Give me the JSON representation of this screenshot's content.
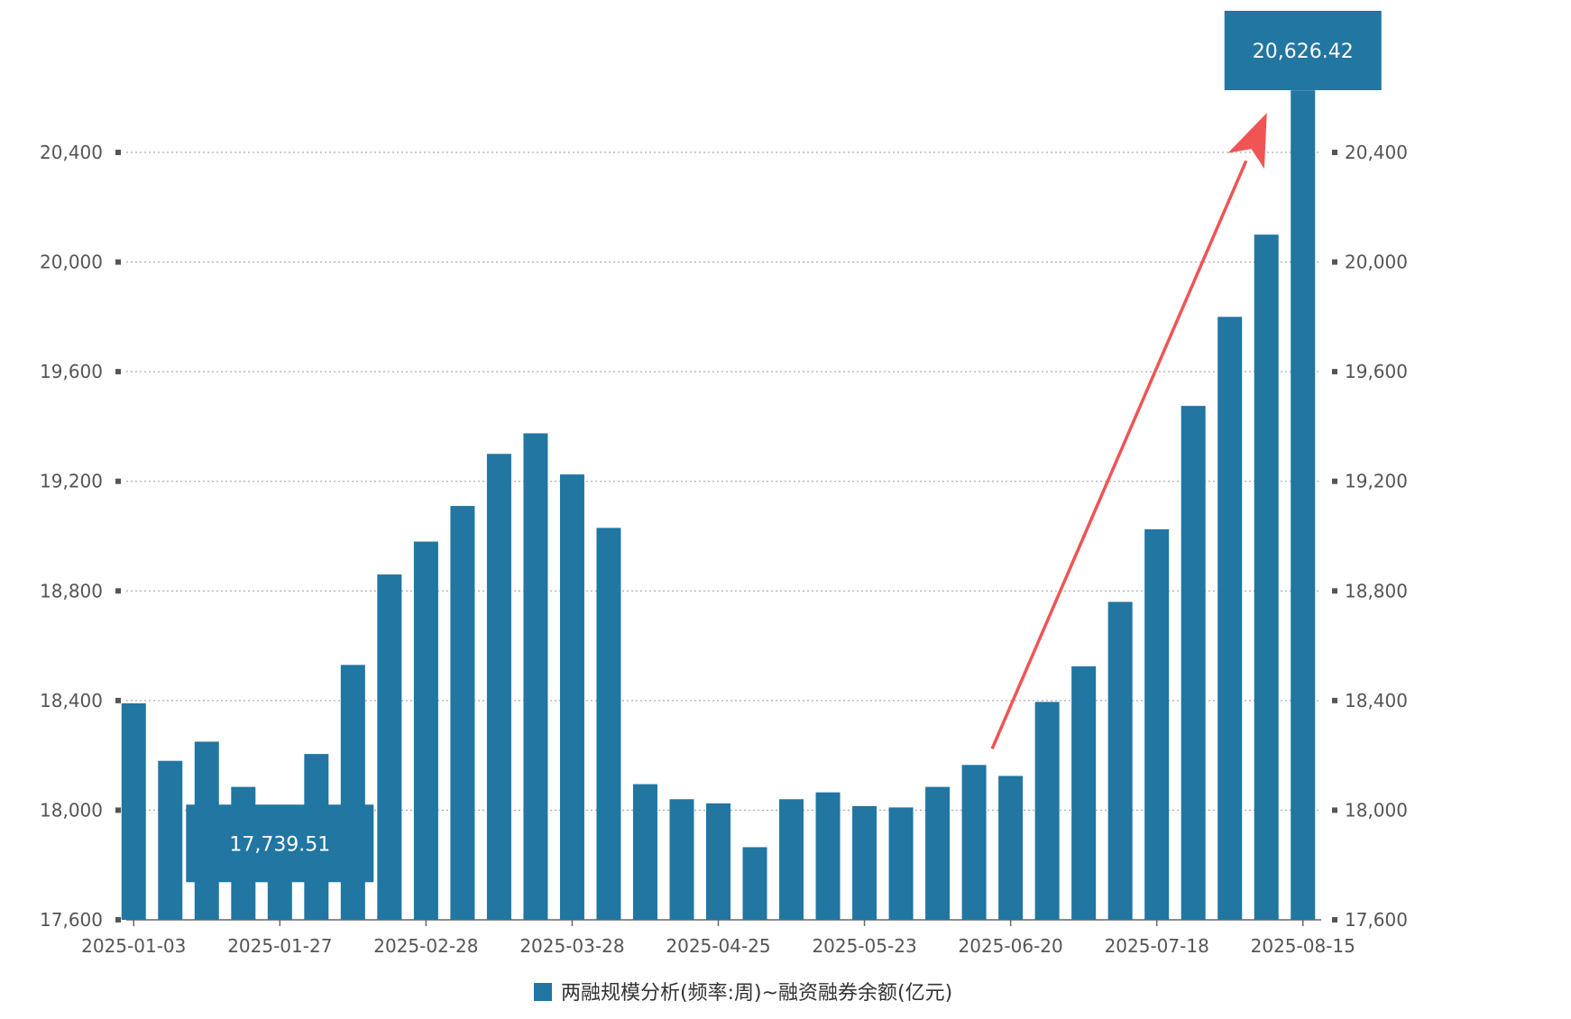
{
  "colors": {
    "bar": "#2176a2",
    "arrow": "#f05454",
    "grid": "#9a9a9a",
    "axis": "#555555",
    "callout": "#2176a2"
  },
  "chart_data": {
    "type": "bar",
    "title": "",
    "xlabel": "",
    "ylabel": "",
    "grid": true,
    "legend_position": "bottom-center",
    "ylim": [
      17600,
      20800
    ],
    "y_ticks": [
      "17,600",
      "18,000",
      "18,400",
      "18,800",
      "19,200",
      "19,600",
      "20,000",
      "20,400"
    ],
    "y_tick_values": [
      17600,
      18000,
      18400,
      18800,
      19200,
      19600,
      20000,
      20400
    ],
    "x_tick_labels": [
      {
        "index": 0,
        "label": "2025-01-03"
      },
      {
        "index": 4,
        "label": "2025-01-27"
      },
      {
        "index": 8,
        "label": "2025-02-28"
      },
      {
        "index": 12,
        "label": "2025-03-28"
      },
      {
        "index": 16,
        "label": "2025-04-25"
      },
      {
        "index": 20,
        "label": "2025-05-23"
      },
      {
        "index": 24,
        "label": "2025-06-20"
      },
      {
        "index": 28,
        "label": "2025-07-18"
      },
      {
        "index": 32,
        "label": "2025-08-15"
      }
    ],
    "series": [
      {
        "name": "两融规模分析(频率:周)~融资融券余额(亿元)",
        "values": [
          18390,
          18180,
          18250,
          18085,
          17739.51,
          18205,
          18530,
          18860,
          18980,
          19110,
          19300,
          19375,
          19225,
          19030,
          18095,
          18040,
          18025,
          17865,
          18040,
          18065,
          18015,
          18010,
          18085,
          18165,
          18125,
          18395,
          18525,
          18760,
          19025,
          19475,
          19800,
          20100,
          20626.42
        ]
      }
    ],
    "annotations": [
      {
        "index": 4,
        "text": "17,739.51"
      },
      {
        "index": 32,
        "text": "20,626.42"
      }
    ]
  }
}
